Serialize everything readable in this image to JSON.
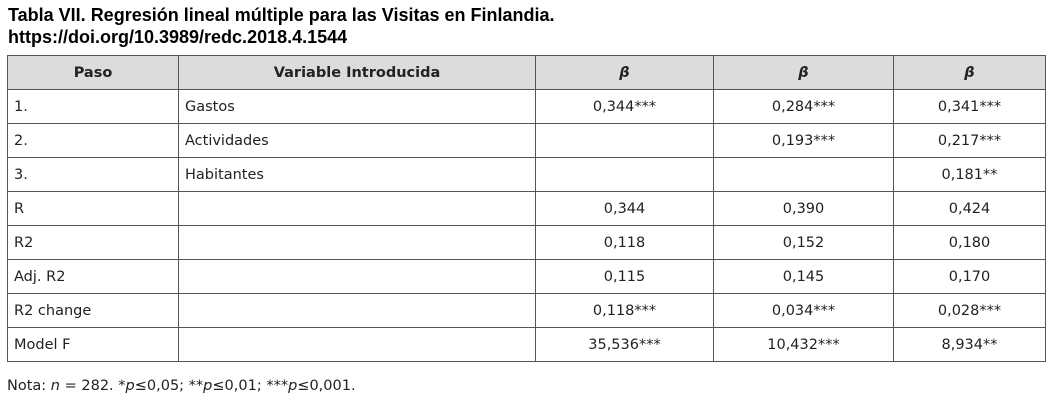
{
  "header": {
    "title": "Tabla VII. Regresión lineal múltiple para las Visitas en Finlandia.",
    "doi": "https://doi.org/10.3989/redc.2018.4.1544"
  },
  "table": {
    "columns": [
      "Paso",
      "Variable Introducida",
      "β",
      "β",
      "β"
    ],
    "rows": [
      [
        "1.",
        "Gastos",
        "0,344***",
        "0,284***",
        "0,341***"
      ],
      [
        "2.",
        "Actividades",
        null,
        "0,193***",
        "0,217***"
      ],
      [
        "3.",
        "Habitantes",
        null,
        null,
        "0,181**"
      ],
      [
        "R",
        null,
        "0,344",
        "0,390",
        "0,424"
      ],
      [
        "R2",
        null,
        "0,118",
        "0,152",
        "0,180"
      ],
      [
        "Adj. R2",
        null,
        "0,115",
        "0,145",
        "0,170"
      ],
      [
        "R2 change",
        null,
        "0,118***",
        "0,034***",
        "0,028***"
      ],
      [
        "Model F",
        null,
        "35,536***",
        "10,432***",
        "8,934**"
      ]
    ]
  },
  "note": [
    "Nota: ",
    "n",
    " = 282. *",
    "p",
    "≤0,05; **",
    "p",
    "≤0,01; ***",
    "p",
    "≤0,001."
  ]
}
